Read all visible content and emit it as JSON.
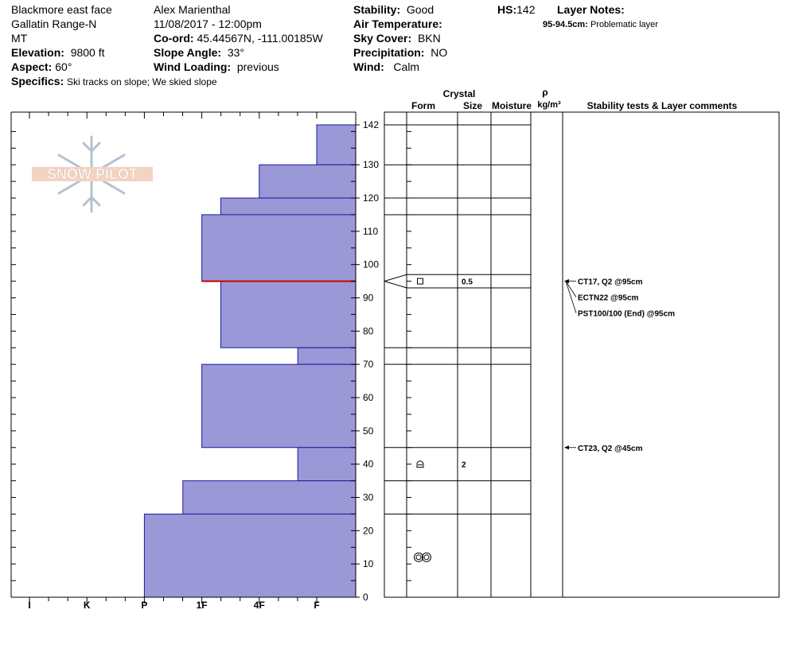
{
  "header": {
    "location": "Blackmore east face",
    "range": "Gallatin Range-N",
    "state": "MT",
    "elevation_label": "Elevation:",
    "elevation": "9800 ft",
    "aspect_label": "Aspect:",
    "aspect": "60°",
    "observer": "Alex Marienthal",
    "datetime": "11/08/2017 - 12:00pm",
    "coord_label": "Co-ord:",
    "coord": "45.44567N, -111.00185W",
    "slope_label": "Slope Angle:",
    "slope": "33°",
    "wind_loading_label": "Wind Loading:",
    "wind_loading": "previous",
    "stability_label": "Stability:",
    "stability": "Good",
    "air_temp_label": "Air Temperature:",
    "sky_label": "Sky Cover:",
    "sky": "BKN",
    "precip_label": "Precipitation:",
    "precip": "NO",
    "wind_label": "Wind:",
    "wind": "Calm",
    "hs_label": "HS:",
    "hs": "142",
    "layer_notes_label": "Layer Notes:",
    "layer_note_depth": "95-94.5cm:",
    "layer_note_text": "Problematic layer",
    "specifics_label": "Specifics:",
    "specifics": "Ski tracks on slope; We skied slope"
  },
  "logo_text": "SNOW PILOT",
  "columns": {
    "crystal": "Crystal",
    "form": "Form",
    "size": "Size",
    "moisture": "Moisture",
    "rho": "ρ",
    "density_unit": "kg/m³",
    "stability_comments": "Stability tests & Layer comments"
  },
  "chart_data": {
    "type": "bar",
    "orientation": "horizontal",
    "title": "",
    "xlabel": "",
    "ylabel": "",
    "x_categories": [
      "I",
      "K",
      "P",
      "1F",
      "4F",
      "F"
    ],
    "ylim": [
      0,
      142
    ],
    "y_ticks": [
      0,
      10,
      20,
      30,
      40,
      50,
      60,
      70,
      80,
      90,
      100,
      110,
      120,
      130,
      142
    ],
    "hardness_layers": [
      {
        "bottom": 130,
        "top": 142,
        "hardness": "F"
      },
      {
        "bottom": 120,
        "top": 130,
        "hardness": "4F"
      },
      {
        "bottom": 115,
        "top": 120,
        "hardness": "1F+"
      },
      {
        "bottom": 95,
        "top": 115,
        "hardness": "1F"
      },
      {
        "bottom": 75,
        "top": 95,
        "hardness": "1F+"
      },
      {
        "bottom": 70,
        "top": 75,
        "hardness": "4F+"
      },
      {
        "bottom": 45,
        "top": 70,
        "hardness": "1F"
      },
      {
        "bottom": 35,
        "top": 45,
        "hardness": "4F+"
      },
      {
        "bottom": 25,
        "top": 35,
        "hardness": "1F-"
      },
      {
        "bottom": 0,
        "top": 25,
        "hardness": "P"
      }
    ],
    "hardness_positions": {
      "I": 0,
      "K": 1,
      "P": 2,
      "1F-": 2.67,
      "1F": 3,
      "1F+": 3.33,
      "4F": 4,
      "4F+": 4.67,
      "F": 5
    },
    "problem_layer_depth": 95,
    "layer_boundaries": [
      142,
      130,
      120,
      115,
      97,
      93,
      75,
      70,
      45,
      35,
      25,
      0
    ],
    "crystals": [
      {
        "height": 95,
        "form": "square",
        "size": "0.5"
      },
      {
        "height": 40,
        "form": "cup",
        "size": "2"
      },
      {
        "height": 12,
        "form": "rounds",
        "size": ""
      }
    ],
    "stability_tests": [
      {
        "height": 95,
        "label": "CT17, Q2 @95cm"
      },
      {
        "height": 95,
        "label": "ECTN22 @95cm"
      },
      {
        "height": 95,
        "label": "PST100/100 (End) @95cm"
      },
      {
        "height": 45,
        "label": "CT23, Q2 @45cm"
      }
    ],
    "colors": {
      "fill": "#9a98d6",
      "stroke": "#1a1aa0",
      "problem": "#cc0000"
    }
  }
}
